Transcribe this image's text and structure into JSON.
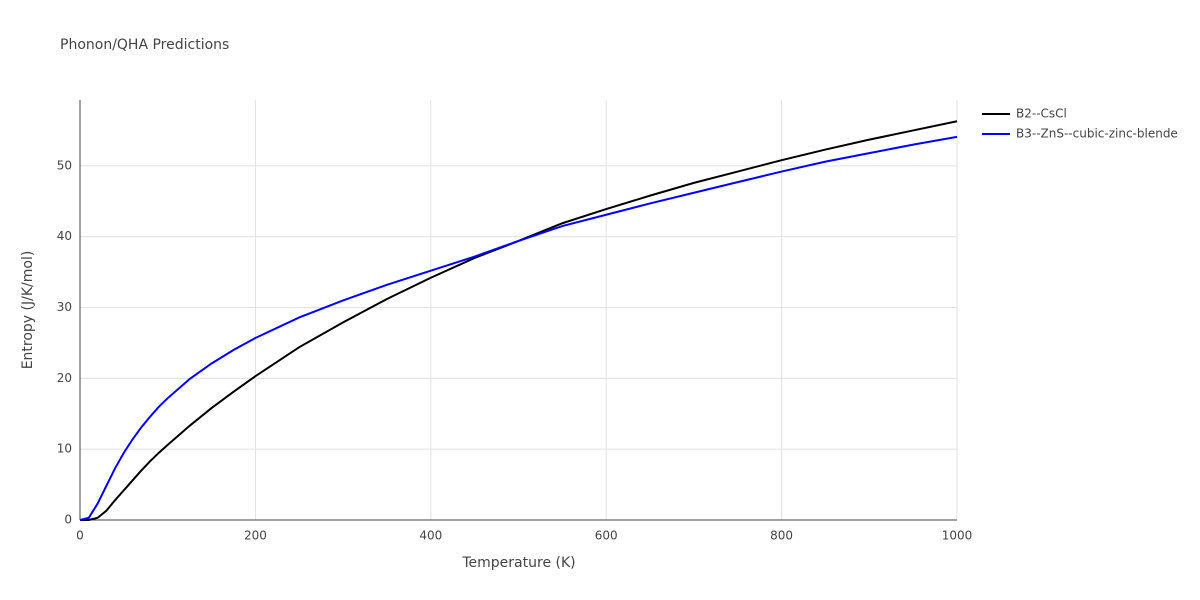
{
  "chart_data": {
    "type": "line",
    "title": "Phonon/QHA Predictions",
    "x_label": "Temperature (K)",
    "y_label": "Entropy (J/K/mol)",
    "x": [
      0,
      10,
      20,
      30,
      40,
      50,
      60,
      70,
      80,
      90,
      100,
      125,
      150,
      175,
      200,
      250,
      300,
      350,
      400,
      450,
      500,
      550,
      600,
      650,
      700,
      750,
      800,
      850,
      900,
      950,
      1000
    ],
    "series": [
      {
        "name": "B2--CsCl",
        "color": "#000000",
        "values": [
          0,
          0,
          0.3,
          1.3,
          2.8,
          4.2,
          5.6,
          7.0,
          8.3,
          9.5,
          10.6,
          13.3,
          15.8,
          18.1,
          20.3,
          24.4,
          27.9,
          31.2,
          34.2,
          37.0,
          39.4,
          41.9,
          43.9,
          45.8,
          47.6,
          49.2,
          50.8,
          52.3,
          53.7,
          55.0,
          56.3
        ]
      },
      {
        "name": "B3--ZnS--cubic-zinc-blende",
        "color": "#0000ff",
        "values": [
          0,
          0.3,
          2.3,
          4.8,
          7.3,
          9.5,
          11.4,
          13.1,
          14.6,
          16.0,
          17.2,
          19.9,
          22.1,
          24.0,
          25.7,
          28.6,
          31.0,
          33.2,
          35.2,
          37.2,
          39.4,
          41.5,
          43.1,
          44.7,
          46.2,
          47.7,
          49.2,
          50.6,
          51.8,
          53.0,
          54.1
        ]
      }
    ],
    "xlim": [
      0,
      1000
    ],
    "xticks": [
      0,
      200,
      400,
      600,
      800,
      1000
    ],
    "ylim": [
      0,
      59.3
    ],
    "yticks": [
      0,
      10,
      20,
      30,
      40,
      50
    ],
    "grid": true,
    "legend": "right"
  }
}
